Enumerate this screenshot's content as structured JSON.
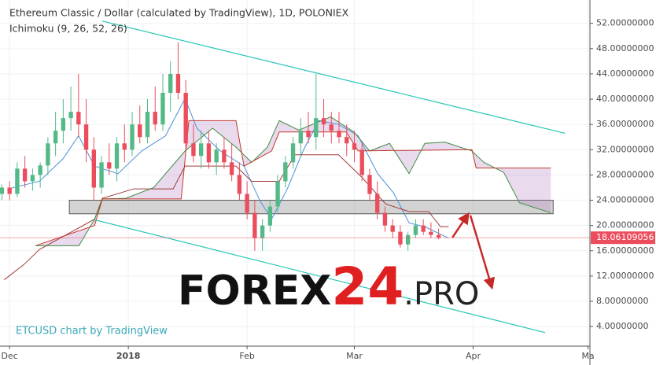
{
  "chart_data": {
    "type": "candlestick",
    "title": "Ethereum Classic / Dollar (calculated by TradingView), 1D, POLONIEX",
    "subtitle": "Ichimoku (9, 26, 52, 26)",
    "credit": "ETCUSD chart by TradingView",
    "watermark": {
      "part1": "FOREX",
      "part2": "24",
      "part3": ".PRO"
    },
    "xlim": [
      -2.5,
      151.5
    ],
    "ylim": [
      0.9,
      55.7
    ],
    "xticks": [
      {
        "value": 0,
        "label": "Dec"
      },
      {
        "value": 31,
        "label": "2018"
      },
      {
        "value": 62,
        "label": "Feb"
      },
      {
        "value": 90,
        "label": "Mar"
      },
      {
        "value": 121,
        "label": "Apr"
      },
      {
        "value": 151,
        "label": "Ma"
      }
    ],
    "yticks": [
      {
        "value": 4,
        "label": "4.00000000"
      },
      {
        "value": 8,
        "label": "8.00000000"
      },
      {
        "value": 12,
        "label": "12.00000000"
      },
      {
        "value": 16,
        "label": "16.00000000"
      },
      {
        "value": 20,
        "label": "20.00000000"
      },
      {
        "value": 24,
        "label": "24.00000000"
      },
      {
        "value": 28,
        "label": "28.00000000"
      },
      {
        "value": 32,
        "label": "32.00000000"
      },
      {
        "value": 36,
        "label": "36.00000000"
      },
      {
        "value": 40,
        "label": "40.00000000"
      },
      {
        "value": 44,
        "label": "44.00000000"
      },
      {
        "value": 48,
        "label": "48.00000000"
      },
      {
        "value": 52,
        "label": "52.00000000"
      }
    ],
    "grid": true,
    "up_color": "#53b987",
    "down_color": "#eb4d5c",
    "price_label": 18.06109056,
    "candles": {
      "x": [
        -2,
        0,
        2,
        4,
        6,
        8,
        10,
        12,
        14,
        16,
        18,
        20,
        22,
        24,
        26,
        28,
        30,
        32,
        34,
        36,
        38,
        40,
        42,
        44,
        46,
        48,
        50,
        52,
        54,
        56,
        58,
        60,
        62,
        64,
        66,
        68,
        70,
        72,
        74,
        76,
        78,
        80,
        82,
        84,
        86,
        88,
        90,
        92,
        94,
        96,
        98,
        100,
        102,
        104,
        106,
        108,
        110,
        112
      ],
      "open": [
        25,
        26,
        25,
        29,
        27,
        28,
        29.5,
        33,
        35,
        37,
        38,
        36,
        32,
        26,
        30,
        29,
        33,
        32,
        36,
        34,
        38,
        36,
        41,
        44,
        41,
        33,
        31,
        33,
        30,
        32,
        30,
        28,
        25,
        22,
        18,
        20,
        23,
        27,
        30,
        33,
        35,
        34,
        37,
        36,
        35,
        34,
        33,
        32,
        28,
        25,
        22,
        20,
        19,
        17,
        18.5,
        20,
        19,
        18.5
      ],
      "high": [
        26.5,
        27,
        30,
        31,
        29,
        30,
        34,
        38,
        40,
        42,
        44,
        40,
        34,
        31,
        33,
        34,
        36,
        38,
        39,
        40,
        42,
        44,
        46,
        49,
        43,
        36,
        35,
        35,
        33,
        34,
        33,
        30,
        27,
        24,
        21,
        24,
        28,
        31,
        34,
        37,
        38,
        44,
        40,
        38,
        38,
        36,
        35,
        33,
        29,
        27,
        23,
        21,
        20,
        19,
        21,
        21,
        20.5,
        19.5
      ],
      "low": [
        24,
        24,
        24.5,
        26,
        25.5,
        26,
        28,
        31,
        33,
        35,
        34,
        30,
        24,
        25,
        28,
        27,
        30,
        31,
        33,
        33,
        35,
        35,
        38,
        40,
        32,
        30,
        29,
        29,
        28,
        29,
        27,
        24,
        21,
        16,
        16,
        19,
        22,
        26,
        29,
        31,
        33,
        32,
        34,
        33,
        33,
        31,
        30,
        27,
        24,
        21,
        19,
        18,
        16.5,
        16,
        18,
        18.5,
        18,
        17.8
      ],
      "close": [
        26,
        25,
        29,
        27,
        28,
        29.5,
        33,
        35,
        37,
        38,
        36,
        32,
        26,
        30,
        29,
        33,
        32,
        36,
        34,
        38,
        36,
        41,
        44,
        41,
        33,
        31,
        33,
        30,
        32,
        30,
        28,
        25,
        22,
        18,
        20,
        23,
        27,
        30,
        33,
        35,
        34,
        37,
        36,
        35,
        34,
        33,
        32,
        28,
        25,
        22,
        20,
        19,
        17,
        18.5,
        20,
        19,
        18.5,
        18.06
      ]
    },
    "lines": [
      {
        "color": "#4a90d9",
        "x": [
          -0.4,
          7.8,
          14,
          18,
          22.2,
          28.3,
          34.5,
          40.7,
          45.8,
          48.9,
          55,
          61.2,
          65.3,
          68.4,
          72.5,
          76.6,
          80.7,
          85.9,
          91,
          96.1,
          100.2,
          104.3,
          108.4,
          114.6
        ],
        "values": [
          25.8,
          27,
          30.6,
          34.2,
          29.4,
          28.2,
          31.8,
          34.2,
          40.1,
          35.4,
          31.8,
          29.4,
          24,
          21,
          25.8,
          31.8,
          36.6,
          36,
          34.2,
          28.2,
          25.2,
          20.4,
          19.8,
          18
        ]
      },
      {
        "color": "#a23b3b",
        "x": [
          -1.4,
          3.7,
          7.8,
          22.2,
          24.2,
          32.4,
          42.7,
          45.8,
          59.1,
          63.2,
          70.4,
          74.5,
          85.9,
          92,
          98.2,
          104.3,
          109.4,
          112.5,
          114.6
        ],
        "values": [
          11.4,
          13.8,
          16.2,
          21,
          24.3,
          25.8,
          25.8,
          29.4,
          29.4,
          27,
          27,
          31.2,
          31.2,
          27.6,
          23.4,
          22.2,
          22.2,
          19.8,
          19.8
        ]
      },
      {
        "color": "#3e8e41",
        "x": [
          6.8,
          18.1,
          22.2,
          24.2,
          30.3,
          37.6,
          45.8,
          53,
          59.1,
          63.2,
          67.3,
          70.4,
          75.5,
          83.8,
          89.9,
          94,
          99.2,
          104.3,
          108.4,
          113.6,
          120.7,
          123.8,
          129,
          133.1,
          141.3
        ],
        "values": [
          16.8,
          16.8,
          21,
          24.2,
          24.3,
          26,
          31.8,
          35.4,
          32.4,
          30,
          32.4,
          36.6,
          35.1,
          37.2,
          34.8,
          31.8,
          33,
          28.2,
          33,
          33.2,
          31.8,
          30,
          28.4,
          23.6,
          22
        ]
      },
      {
        "color": "#c0392b",
        "x": [
          6.8,
          22.2,
          24.2,
          44.8,
          46.8,
          59.1,
          61.2,
          68.4,
          70.4,
          87.9,
          91,
          120.7,
          121.8,
          141.3
        ],
        "values": [
          16.8,
          20,
          24.2,
          24.2,
          36.6,
          36.6,
          29.4,
          31.8,
          34.8,
          34.8,
          31.8,
          32,
          29.1,
          29.1
        ]
      }
    ],
    "trendlines": [
      {
        "color": "#26c6b4",
        "x": [
          24.2,
          145
        ],
        "values": [
          52.36,
          34.6
        ]
      },
      {
        "color": "#26c6b4",
        "x": [
          22.2,
          139.8
        ],
        "values": [
          20.9,
          3.04
        ]
      }
    ],
    "zone": {
      "x": [
        15.6,
        141.9
      ],
      "values": [
        21.85,
        24.0
      ]
    },
    "arrows": [
      {
        "color": "#c62828",
        "x": [
          115.6,
          119.7
        ],
        "values": [
          18.1,
          21.8
        ]
      },
      {
        "color": "#c62828",
        "x": [
          120.3,
          125.9
        ],
        "values": [
          21.6,
          10.2
        ]
      }
    ]
  }
}
